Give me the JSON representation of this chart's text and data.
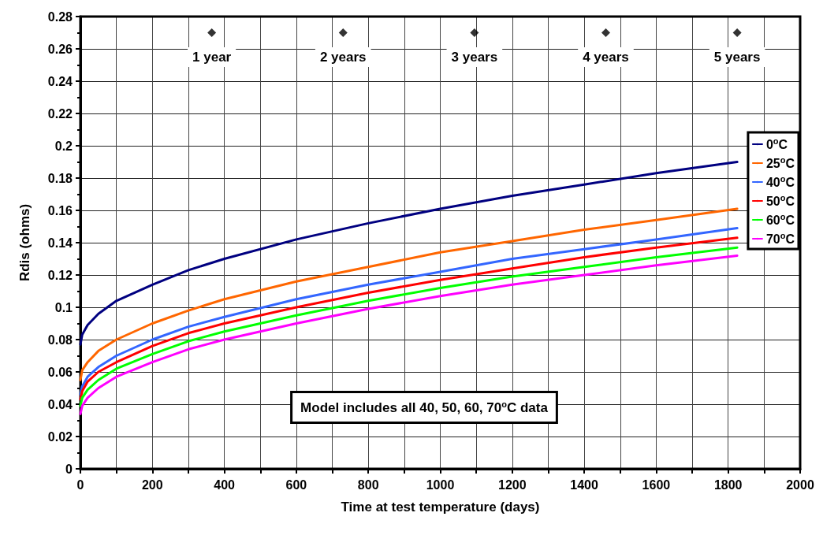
{
  "chart_data": {
    "type": "line",
    "xlabel": "Time at test temperature (days)",
    "ylabel": "Rdis (ohms)",
    "x": [
      0,
      5,
      20,
      50,
      100,
      200,
      300,
      400,
      600,
      800,
      1000,
      1200,
      1400,
      1600,
      1825
    ],
    "series": [
      {
        "name": "0$^{o}$C",
        "color": "#000080",
        "values": [
          0.077,
          0.083,
          0.089,
          0.096,
          0.104,
          0.114,
          0.123,
          0.13,
          0.142,
          0.152,
          0.161,
          0.169,
          0.176,
          0.183,
          0.19
        ]
      },
      {
        "name": "25$^{o}$C",
        "color": "#ff6600",
        "values": [
          0.055,
          0.061,
          0.066,
          0.073,
          0.08,
          0.09,
          0.098,
          0.105,
          0.116,
          0.125,
          0.134,
          0.141,
          0.148,
          0.154,
          0.161
        ]
      },
      {
        "name": "40$^{o}$C",
        "color": "#3366ff",
        "values": [
          0.046,
          0.051,
          0.057,
          0.063,
          0.07,
          0.08,
          0.088,
          0.094,
          0.105,
          0.114,
          0.122,
          0.13,
          0.136,
          0.142,
          0.149
        ]
      },
      {
        "name": "50$^{o}$C",
        "color": "#ff0000",
        "values": [
          0.043,
          0.048,
          0.054,
          0.06,
          0.066,
          0.076,
          0.084,
          0.09,
          0.1,
          0.109,
          0.117,
          0.124,
          0.131,
          0.137,
          0.143
        ]
      },
      {
        "name": "60$^{o}$C",
        "color": "#00ff00",
        "values": [
          0.039,
          0.044,
          0.049,
          0.055,
          0.062,
          0.071,
          0.079,
          0.085,
          0.095,
          0.104,
          0.112,
          0.119,
          0.125,
          0.131,
          0.137
        ]
      },
      {
        "name": "70$^{o}$C",
        "color": "#ff00ff",
        "values": [
          0.034,
          0.039,
          0.044,
          0.05,
          0.057,
          0.066,
          0.074,
          0.08,
          0.09,
          0.099,
          0.107,
          0.114,
          0.12,
          0.126,
          0.132
        ]
      },
      {
        "type": "scatter",
        "marker": "diamond",
        "color": "#000000",
        "x": [
          365,
          730,
          1095,
          1460,
          1825
        ],
        "values": [
          0.27,
          0.27,
          0.27,
          0.27,
          0.27
        ]
      }
    ],
    "marker": "none",
    "line_style": "solid",
    "grid": true,
    "legend": "right",
    "xlim": [
      0,
      2000
    ],
    "xticks": [
      0,
      {
        "value": 100,
        "label": null
      },
      200,
      {
        "value": 300,
        "label": null
      },
      400,
      {
        "value": 500,
        "label": null
      },
      600,
      {
        "value": 700,
        "label": null
      },
      800,
      {
        "value": 900,
        "label": null
      },
      1000,
      {
        "value": 1100,
        "label": null
      },
      1200,
      {
        "value": 1300,
        "label": null
      },
      1400,
      {
        "value": 1500,
        "label": null
      },
      1600,
      {
        "value": 1700,
        "label": null
      },
      1800,
      {
        "value": 1900,
        "label": null
      },
      2000
    ],
    "ylim": [
      0,
      0.28
    ],
    "yticks": [
      0,
      0.02,
      0.04,
      0.06,
      0.08,
      0.1,
      0.12,
      0.14,
      0.16,
      0.18,
      0.2,
      0.22,
      0.24,
      0.26,
      0.28
    ],
    "annotations": [
      {
        "text": "1 year",
        "x": 365,
        "y": 0.27
      },
      {
        "text": "2 years",
        "x": 730,
        "y": 0.27
      },
      {
        "text": "3 years",
        "x": 1095,
        "y": 0.27
      },
      {
        "text": "4 years",
        "x": 1460,
        "y": 0.27
      },
      {
        "text": "5 years",
        "x": 1825,
        "y": 0.27
      },
      "Model includes all 40, 50, 60, 70$^{o}$C data"
    ]
  }
}
